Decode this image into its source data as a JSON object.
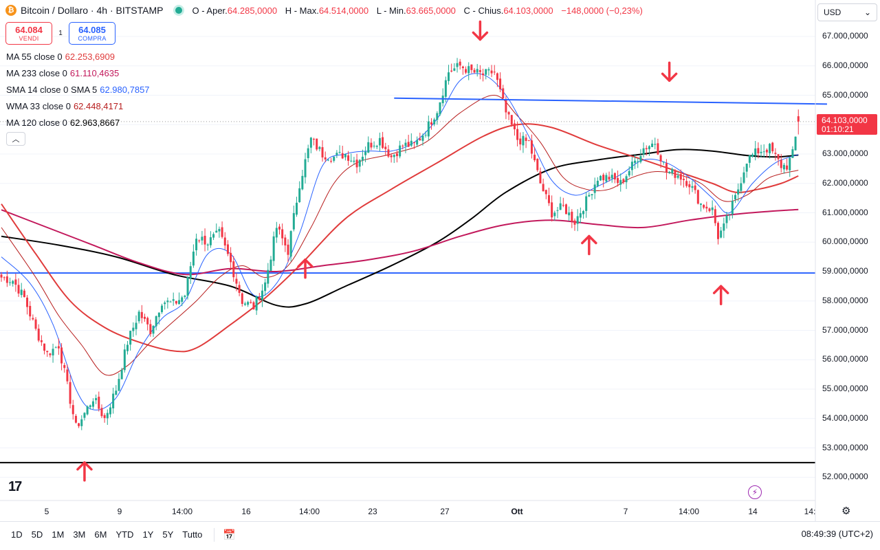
{
  "header": {
    "symbol": "Bitcoin / Dollaro · 4h · BITSTAMP",
    "logo_letter": "₿",
    "open_label": "O - Aper.",
    "open": "64.285,0000",
    "high_label": "H - Max.",
    "high": "64.514,0000",
    "low_label": "L - Min.",
    "low": "63.665,0000",
    "close_label": "C - Chius.",
    "close": "64.103,0000",
    "change": "−148,0000 (−0,23%)"
  },
  "trade": {
    "sell_price": "64.084",
    "sell_label": "VENDI",
    "spread": "1",
    "buy_price": "64.085",
    "buy_label": "COMPRA"
  },
  "indicators": [
    {
      "label": "MA 55 close 0",
      "value": "62.253,6909",
      "color": "#e03b3b"
    },
    {
      "label": "MA 233 close 0",
      "value": "61.110,4635",
      "color": "#c2185b"
    },
    {
      "label": "SMA 14 close 0 SMA 5",
      "value": "62.980,7857",
      "color": "#2962ff"
    },
    {
      "label": "WMA 33 close 0",
      "value": "62.448,4171",
      "color": "#b71c1c"
    },
    {
      "label": "MA 120 close 0",
      "value": "62.963,8667",
      "color": "#000000"
    }
  ],
  "currency": "USD",
  "last_price": {
    "value": "64.103,0000",
    "countdown": "01:10:21"
  },
  "time_range": [
    "1D",
    "5D",
    "1M",
    "3M",
    "6M",
    "YTD",
    "1Y",
    "5Y",
    "Tutto"
  ],
  "clock": "08:49:39 (UTC+2)",
  "icons": {
    "collapse": "chevron-up-icon",
    "dropdown": "chevron-down-icon",
    "flash": "flash-icon",
    "settings": "gear-icon",
    "compare": "calendar-range-icon",
    "logo": "tradingview-logo"
  },
  "chart_data": {
    "type": "candlestick",
    "timeframe": "4h",
    "y_ticks": [
      52000,
      53000,
      54000,
      55000,
      56000,
      57000,
      58000,
      59000,
      60000,
      61000,
      62000,
      63000,
      64000,
      65000,
      66000,
      67000
    ],
    "y_tick_labels": [
      "52.000,0000",
      "53.000,0000",
      "54.000,0000",
      "55.000,0000",
      "56.000,0000",
      "57.000,0000",
      "58.000,0000",
      "59.000,0000",
      "60.000,0000",
      "61.000,0000",
      "62.000,0000",
      "63.000,0000",
      "64.000,0000",
      "65.000,0000",
      "66.000,0000",
      "67.000,0000"
    ],
    "ylim": [
      51500,
      68000
    ],
    "x_ticks": [
      "5",
      "9",
      "14:00",
      "16",
      "14:00",
      "23",
      "27",
      "Ott",
      "7",
      "14:00",
      "14",
      "14:"
    ],
    "x_tick_bold": [
      false,
      false,
      false,
      false,
      false,
      false,
      false,
      true,
      false,
      false,
      false,
      false
    ],
    "anchors": [
      [
        0,
        58800
      ],
      [
        4,
        58700
      ],
      [
        8,
        58100
      ],
      [
        12,
        57000
      ],
      [
        16,
        56200
      ],
      [
        20,
        56500
      ],
      [
        26,
        53700
      ],
      [
        28,
        54000
      ],
      [
        32,
        54700
      ],
      [
        36,
        54000
      ],
      [
        40,
        55000
      ],
      [
        44,
        56600
      ],
      [
        48,
        57600
      ],
      [
        52,
        57000
      ],
      [
        56,
        58000
      ],
      [
        60,
        57900
      ],
      [
        64,
        58200
      ],
      [
        68,
        60200
      ],
      [
        72,
        60000
      ],
      [
        76,
        60300
      ],
      [
        80,
        59300
      ],
      [
        84,
        58000
      ],
      [
        88,
        57800
      ],
      [
        92,
        58600
      ],
      [
        96,
        60500
      ],
      [
        100,
        59700
      ],
      [
        104,
        62000
      ],
      [
        108,
        63500
      ],
      [
        112,
        63000
      ],
      [
        116,
        62900
      ],
      [
        120,
        63000
      ],
      [
        124,
        62700
      ],
      [
        128,
        63300
      ],
      [
        132,
        63500
      ],
      [
        136,
        62900
      ],
      [
        140,
        63300
      ],
      [
        144,
        63300
      ],
      [
        148,
        63800
      ],
      [
        152,
        64500
      ],
      [
        156,
        65800
      ],
      [
        160,
        66000
      ],
      [
        164,
        65800
      ],
      [
        168,
        65700
      ],
      [
        172,
        65800
      ],
      [
        176,
        64400
      ],
      [
        180,
        63500
      ],
      [
        184,
        63400
      ],
      [
        188,
        62000
      ],
      [
        192,
        61000
      ],
      [
        196,
        61200
      ],
      [
        200,
        60700
      ],
      [
        204,
        61400
      ],
      [
        208,
        62200
      ],
      [
        212,
        62200
      ],
      [
        216,
        62000
      ],
      [
        220,
        62600
      ],
      [
        224,
        63200
      ],
      [
        228,
        63400
      ],
      [
        232,
        62400
      ],
      [
        236,
        62300
      ],
      [
        240,
        62000
      ],
      [
        244,
        61300
      ],
      [
        248,
        61100
      ],
      [
        250,
        60200
      ],
      [
        252,
        60500
      ],
      [
        256,
        61500
      ],
      [
        260,
        62800
      ],
      [
        264,
        63100
      ],
      [
        268,
        63200
      ],
      [
        272,
        62600
      ],
      [
        274,
        62600
      ],
      [
        276,
        63000
      ],
      [
        278,
        64103
      ]
    ],
    "candle_count": 279,
    "last": {
      "open": 64285,
      "high": 64514,
      "low": 63665,
      "close": 64103
    },
    "horizontal_lines": [
      {
        "value": 58950,
        "color": "#2962ff"
      },
      {
        "value": 52500,
        "color": "#000000"
      }
    ],
    "trendline": {
      "from": [
        137,
        64900
      ],
      "to": [
        288,
        64700
      ],
      "color": "#2962ff"
    },
    "markers": [
      {
        "dir": "up",
        "bar": 29,
        "value": 52200
      },
      {
        "dir": "up",
        "bar": 106,
        "value": 59100
      },
      {
        "dir": "down",
        "bar": 167,
        "value": 67200
      },
      {
        "dir": "up",
        "bar": 205,
        "value": 59900
      },
      {
        "dir": "down",
        "bar": 233,
        "value": 65800
      },
      {
        "dir": "up",
        "bar": 251,
        "value": 58200
      }
    ],
    "ma_lines": [
      {
        "name": "MA 120",
        "color": "#000000",
        "width": 2,
        "points": [
          [
            0,
            60200
          ],
          [
            20,
            59900
          ],
          [
            40,
            59500
          ],
          [
            60,
            58900
          ],
          [
            80,
            58500
          ],
          [
            96,
            57850
          ],
          [
            106,
            57900
          ],
          [
            120,
            58500
          ],
          [
            136,
            59200
          ],
          [
            152,
            60000
          ],
          [
            164,
            60800
          ],
          [
            176,
            61700
          ],
          [
            192,
            62500
          ],
          [
            208,
            62800
          ],
          [
            224,
            63000
          ],
          [
            236,
            63150
          ],
          [
            248,
            63100
          ],
          [
            260,
            62950
          ],
          [
            270,
            62900
          ],
          [
            278,
            62964
          ]
        ]
      },
      {
        "name": "MA 233",
        "color": "#c2185b",
        "width": 2,
        "points": [
          [
            0,
            61100
          ],
          [
            16,
            60500
          ],
          [
            32,
            59900
          ],
          [
            48,
            59300
          ],
          [
            64,
            58900
          ],
          [
            80,
            59100
          ],
          [
            96,
            59000
          ],
          [
            112,
            59200
          ],
          [
            128,
            59400
          ],
          [
            144,
            59700
          ],
          [
            160,
            60200
          ],
          [
            176,
            60600
          ],
          [
            192,
            60750
          ],
          [
            208,
            60600
          ],
          [
            224,
            60500
          ],
          [
            240,
            60750
          ],
          [
            256,
            60950
          ],
          [
            268,
            61050
          ],
          [
            278,
            61110
          ]
        ]
      },
      {
        "name": "MA 55",
        "color": "#e03b3b",
        "width": 2,
        "points": [
          [
            0,
            61300
          ],
          [
            12,
            59600
          ],
          [
            24,
            58000
          ],
          [
            36,
            57100
          ],
          [
            48,
            56600
          ],
          [
            60,
            56300
          ],
          [
            68,
            56400
          ],
          [
            80,
            57200
          ],
          [
            92,
            58100
          ],
          [
            104,
            59200
          ],
          [
            120,
            60800
          ],
          [
            136,
            61800
          ],
          [
            152,
            62700
          ],
          [
            168,
            63600
          ],
          [
            180,
            64000
          ],
          [
            192,
            63900
          ],
          [
            208,
            63300
          ],
          [
            224,
            62800
          ],
          [
            236,
            62400
          ],
          [
            248,
            62000
          ],
          [
            256,
            61700
          ],
          [
            264,
            61800
          ],
          [
            272,
            62000
          ],
          [
            278,
            62254
          ]
        ]
      },
      {
        "name": "WMA 33",
        "color": "#b71c1c",
        "width": 1,
        "points": [
          [
            0,
            60500
          ],
          [
            12,
            58800
          ],
          [
            20,
            57500
          ],
          [
            28,
            56500
          ],
          [
            36,
            55500
          ],
          [
            44,
            55800
          ],
          [
            52,
            56600
          ],
          [
            60,
            57300
          ],
          [
            68,
            58000
          ],
          [
            76,
            58800
          ],
          [
            84,
            59200
          ],
          [
            92,
            58800
          ],
          [
            100,
            59200
          ],
          [
            108,
            60500
          ],
          [
            116,
            62000
          ],
          [
            124,
            62700
          ],
          [
            136,
            63000
          ],
          [
            148,
            63400
          ],
          [
            160,
            64400
          ],
          [
            172,
            65000
          ],
          [
            180,
            64300
          ],
          [
            188,
            63400
          ],
          [
            196,
            62200
          ],
          [
            204,
            61800
          ],
          [
            212,
            61800
          ],
          [
            220,
            62200
          ],
          [
            228,
            62400
          ],
          [
            236,
            62300
          ],
          [
            244,
            62000
          ],
          [
            252,
            61400
          ],
          [
            260,
            61600
          ],
          [
            268,
            62200
          ],
          [
            278,
            62448
          ]
        ]
      },
      {
        "name": "SMA 14",
        "color": "#2962ff",
        "width": 1,
        "points": [
          [
            0,
            59500
          ],
          [
            10,
            58600
          ],
          [
            18,
            57200
          ],
          [
            26,
            55000
          ],
          [
            32,
            54300
          ],
          [
            40,
            54700
          ],
          [
            48,
            56300
          ],
          [
            56,
            57400
          ],
          [
            64,
            58000
          ],
          [
            72,
            59600
          ],
          [
            80,
            59600
          ],
          [
            88,
            58200
          ],
          [
            96,
            58600
          ],
          [
            104,
            60300
          ],
          [
            112,
            62600
          ],
          [
            120,
            63000
          ],
          [
            128,
            63100
          ],
          [
            136,
            63100
          ],
          [
            144,
            63400
          ],
          [
            152,
            64200
          ],
          [
            160,
            65500
          ],
          [
            168,
            65700
          ],
          [
            176,
            65000
          ],
          [
            184,
            63600
          ],
          [
            192,
            62100
          ],
          [
            200,
            61600
          ],
          [
            208,
            61900
          ],
          [
            216,
            62300
          ],
          [
            224,
            62800
          ],
          [
            232,
            62700
          ],
          [
            240,
            62200
          ],
          [
            248,
            61500
          ],
          [
            254,
            61000
          ],
          [
            262,
            62000
          ],
          [
            270,
            62700
          ],
          [
            278,
            62981
          ]
        ]
      }
    ]
  }
}
